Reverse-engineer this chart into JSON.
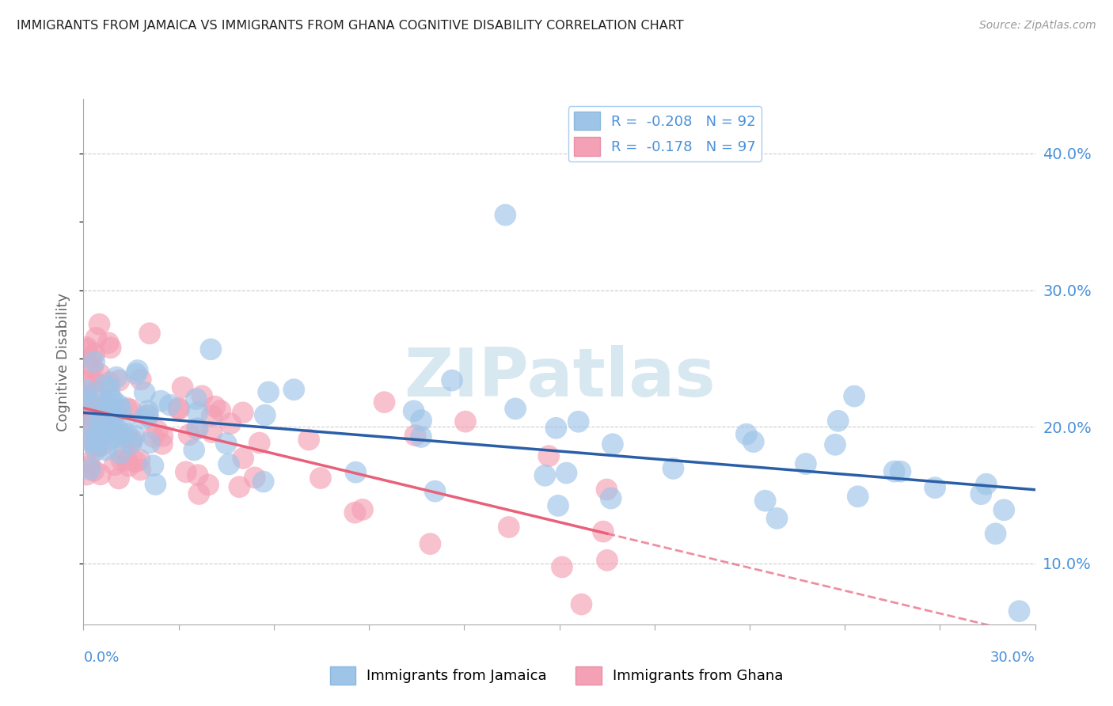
{
  "title": "IMMIGRANTS FROM JAMAICA VS IMMIGRANTS FROM GHANA COGNITIVE DISABILITY CORRELATION CHART",
  "source": "Source: ZipAtlas.com",
  "ylabel": "Cognitive Disability",
  "y_tick_labels": [
    "10.0%",
    "20.0%",
    "30.0%",
    "40.0%"
  ],
  "y_tick_values": [
    0.1,
    0.2,
    0.3,
    0.4
  ],
  "x_min": 0.0,
  "x_max": 0.3,
  "y_min": 0.055,
  "y_max": 0.44,
  "legend_jamaica": "R =  -0.208   N = 92",
  "legend_ghana": "R =  -0.178   N = 97",
  "watermark": "ZIPatlas",
  "color_jamaica": "#9ec4e8",
  "color_ghana": "#f4a0b5",
  "color_jamaica_line": "#2a5fa8",
  "color_ghana_line": "#e8607a",
  "background_color": "#ffffff",
  "grid_color": "#cccccc",
  "axis_label_color": "#4a90d9",
  "watermark_color": "#d8e8f0"
}
